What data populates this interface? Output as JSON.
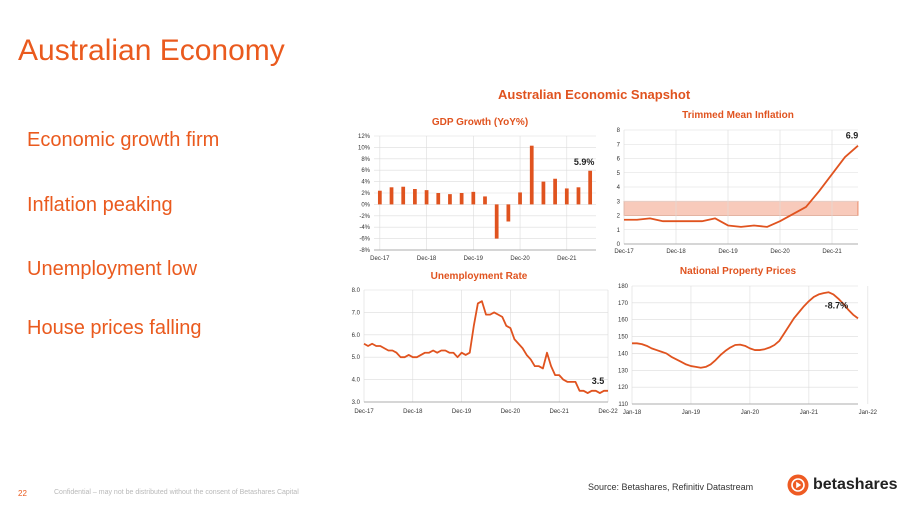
{
  "slide": {
    "title": "Australian Economy",
    "bullets": [
      "Economic growth firm",
      "Inflation peaking",
      "Unemployment low",
      "House prices falling"
    ],
    "snapshot_title": "Australian Economic Snapshot",
    "page_number": "22",
    "confidential": "Confidential – may not be distributed without the consent of Betashares Capital",
    "source": "Source: Betashares, Refinitiv Datastream",
    "logo_text": "betashares",
    "accent_color": "#e0531f"
  },
  "chart_data": [
    {
      "id": "gdp",
      "type": "bar",
      "title": "GDP Growth (YoY%)",
      "ylim": [
        -8,
        12
      ],
      "yticks": [
        12,
        10,
        8,
        6,
        4,
        2,
        0,
        -2,
        -4,
        -6,
        -8
      ],
      "ytick_labels": [
        "12%",
        "10%",
        "8%",
        "6%",
        "4%",
        "2%",
        "0%",
        "-2%",
        "-4%",
        "-6%",
        "-8%"
      ],
      "x_labels": [
        "Dec-17",
        "Dec-18",
        "Dec-19",
        "Dec-20",
        "Dec-21"
      ],
      "x_label_index": [
        0,
        4,
        8,
        12,
        16
      ],
      "values": [
        2.4,
        3.0,
        3.1,
        2.7,
        2.5,
        2.0,
        1.8,
        2.0,
        2.2,
        1.4,
        -6.0,
        -3.0,
        2.1,
        10.3,
        4.0,
        4.5,
        2.8,
        3.0,
        5.9
      ],
      "annotation": {
        "text": "5.9%",
        "index": 18
      },
      "grid": true
    },
    {
      "id": "inflation",
      "type": "line",
      "title": "Trimmed Mean Inflation",
      "ylim": [
        0,
        8
      ],
      "yticks": [
        0,
        1,
        2,
        3,
        4,
        5,
        6,
        7,
        8
      ],
      "x_labels": [
        "Dec-17",
        "Dec-18",
        "Dec-19",
        "Dec-20",
        "Dec-21"
      ],
      "x_label_index": [
        0,
        4,
        8,
        12,
        16
      ],
      "values": [
        1.7,
        1.7,
        1.8,
        1.6,
        1.6,
        1.6,
        1.6,
        1.8,
        1.3,
        1.2,
        1.3,
        1.2,
        1.6,
        2.1,
        2.6,
        3.7,
        4.9,
        6.1,
        6.9
      ],
      "target_band": [
        2,
        3
      ],
      "annotation": {
        "text": "6.9",
        "index": 18
      },
      "grid": true
    },
    {
      "id": "unemployment",
      "type": "line",
      "title": "Unemployment Rate",
      "ylim": [
        3.0,
        8.0
      ],
      "yticks": [
        3.0,
        4.0,
        5.0,
        6.0,
        7.0,
        8.0
      ],
      "ytick_labels": [
        "3.0",
        "4.0",
        "5.0",
        "6.0",
        "7.0",
        "8.0"
      ],
      "x_labels": [
        "Dec-17",
        "Dec-18",
        "Dec-19",
        "Dec-20",
        "Dec-21",
        "Dec-22"
      ],
      "x_label_index": [
        0,
        12,
        24,
        36,
        48,
        60
      ],
      "values": [
        5.6,
        5.5,
        5.6,
        5.5,
        5.5,
        5.4,
        5.3,
        5.3,
        5.2,
        5.0,
        5.0,
        5.1,
        5.0,
        5.0,
        5.1,
        5.2,
        5.2,
        5.3,
        5.2,
        5.3,
        5.3,
        5.2,
        5.2,
        5.0,
        5.2,
        5.1,
        5.2,
        6.4,
        7.4,
        7.5,
        6.9,
        6.9,
        7.0,
        6.9,
        6.8,
        6.4,
        6.3,
        5.8,
        5.6,
        5.4,
        5.1,
        4.9,
        4.6,
        4.6,
        4.5,
        5.2,
        4.6,
        4.2,
        4.2,
        4.0,
        3.9,
        3.9,
        3.9,
        3.5,
        3.5,
        3.4,
        3.5,
        3.5,
        3.4,
        3.5,
        3.5
      ],
      "annotation": {
        "text": "3.5",
        "index": 60
      },
      "grid": true
    },
    {
      "id": "property",
      "type": "line",
      "title": "National Property Prices",
      "ylim": [
        110,
        180
      ],
      "yticks": [
        110,
        120,
        130,
        140,
        150,
        160,
        170,
        180
      ],
      "x_labels": [
        "Jan-18",
        "Jan-19",
        "Jan-20",
        "Jan-21",
        "Jan-22"
      ],
      "x_label_index": [
        0,
        12,
        24,
        36,
        48
      ],
      "values": [
        146,
        146,
        145.5,
        144.5,
        143,
        142,
        141,
        140,
        138,
        136.5,
        135,
        133.5,
        132.5,
        132,
        131.5,
        132,
        133.5,
        136,
        139,
        141.5,
        143.5,
        145,
        145.2,
        144.5,
        143,
        142,
        142,
        142.5,
        143.5,
        145,
        147.5,
        152,
        156.5,
        161,
        164.5,
        168,
        171,
        173.5,
        175,
        175.8,
        176.3,
        175,
        172.5,
        169.5,
        166,
        163,
        160.8
      ],
      "annotation": {
        "text": "-8.7%",
        "index": 41
      },
      "grid": true
    }
  ]
}
